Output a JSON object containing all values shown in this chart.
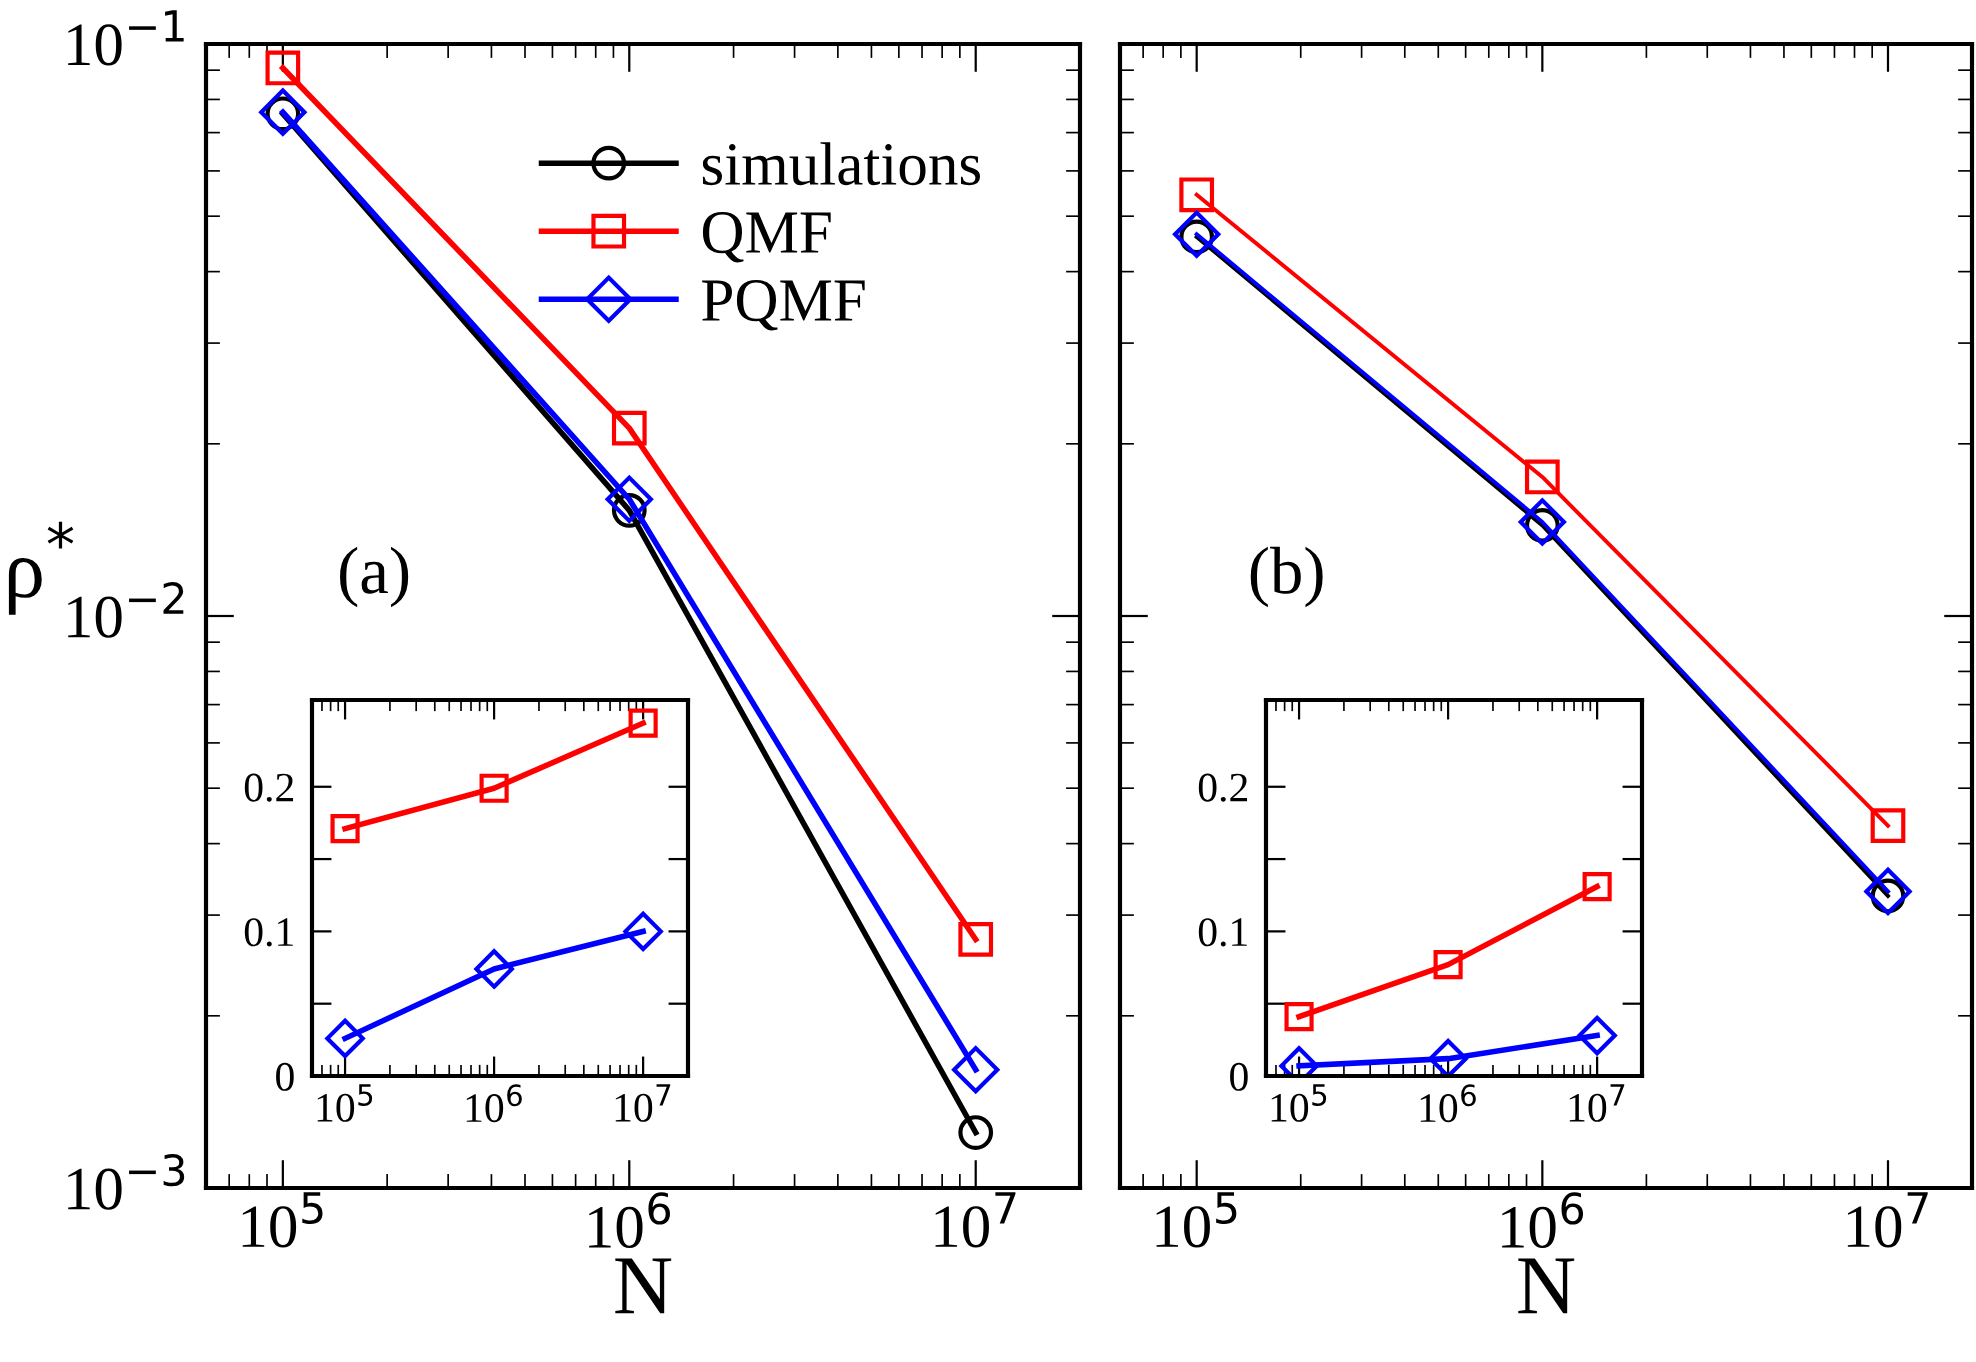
{
  "chart_data": [
    {
      "type": "line",
      "xlabel": "N",
      "ylabel": "ρ$^{*}$",
      "annotations": [
        "(a)"
      ],
      "log": "xy",
      "xlim": [
        60000,
        20000000
      ],
      "ylim": [
        0.001,
        0.1
      ],
      "xticks": [
        {
          "value": 100000,
          "label": "10$^{5}$"
        },
        {
          "value": 1000000,
          "label": "10$^{6}$"
        },
        {
          "value": 10000000,
          "label": "10$^{7}$"
        }
      ],
      "yticks": [
        {
          "value": 0.001,
          "label": "10$^{−3}$"
        },
        {
          "value": 0.01,
          "label": "10$^{−2}$"
        },
        {
          "value": 0.1,
          "label": "10$^{−1}$"
        }
      ],
      "x": [
        100000,
        1000000,
        10000000
      ],
      "legend": "top right",
      "line_style": "solid",
      "series": [
        {
          "name": "simulations",
          "color": "#000000",
          "marker": "circle",
          "values": [
            0.0755,
            0.0153,
            0.00125
          ]
        },
        {
          "name": "QMF",
          "color": "#ff0000",
          "marker": "square",
          "values": [
            0.0908,
            0.0213,
            0.00272
          ]
        },
        {
          "name": "PQMF",
          "color": "#0000ff",
          "marker": "diamond",
          "values": [
            0.076,
            0.016,
            0.00161
          ]
        }
      ]
    },
    {
      "type": "line",
      "log": "x",
      "xlim": [
        60000,
        20000000
      ],
      "ylim": [
        0,
        0.26
      ],
      "xticks": [
        {
          "value": 100000,
          "label": "10$^{5}$"
        },
        {
          "value": 1000000,
          "label": "10$^{6}$"
        },
        {
          "value": 10000000,
          "label": "10$^{7}$"
        }
      ],
      "yticks": [
        0,
        {
          "value": 0.05,
          "label": null
        },
        0.1,
        {
          "value": 0.15,
          "label": null
        },
        0.2
      ],
      "x": [
        100000,
        1000000,
        10000000
      ],
      "line_style": "solid",
      "series": [
        {
          "color": "#ff0000",
          "marker": "square",
          "values": [
            0.171,
            0.199,
            0.244
          ]
        },
        {
          "color": "#0000ff",
          "marker": "diamond",
          "values": [
            0.026,
            0.074,
            0.1
          ]
        }
      ]
    },
    {
      "type": "line",
      "xlabel": "N",
      "annotations": [
        "(b)"
      ],
      "log": "xy",
      "xlim": [
        60000,
        17500000
      ],
      "ylim": [
        0.001,
        0.1
      ],
      "tick_labels": "x",
      "xticks": [
        {
          "value": 100000,
          "label": "10$^{5}$"
        },
        {
          "value": 1000000,
          "label": "10$^{6}$"
        },
        {
          "value": 10000000,
          "label": "10$^{7}$"
        }
      ],
      "yticks": [
        {
          "value": 0.001,
          "label": null
        },
        {
          "value": 0.01,
          "label": null
        },
        {
          "value": 0.1,
          "label": null
        }
      ],
      "x": [
        100000,
        1000000,
        10000000
      ],
      "line_style": "solid",
      "series": [
        {
          "color": "#000000",
          "marker": "circle",
          "values": [
            0.046,
            0.0144,
            0.00324
          ]
        },
        {
          "color": "#ff0000",
          "marker": "square",
          "values": [
            0.0545,
            0.0175,
            0.0043
          ]
        },
        {
          "color": "#0000ff",
          "marker": "diamond",
          "values": [
            0.0465,
            0.0146,
            0.0033
          ]
        }
      ]
    },
    {
      "type": "line",
      "log": "x",
      "xlim": [
        60000,
        20000000
      ],
      "ylim": [
        0,
        0.26
      ],
      "xticks": [
        {
          "value": 100000,
          "label": "10$^{5}$"
        },
        {
          "value": 1000000,
          "label": "10$^{6}$"
        },
        {
          "value": 10000000,
          "label": "10$^{7}$"
        }
      ],
      "yticks": [
        0,
        {
          "value": 0.05,
          "label": null
        },
        0.1,
        {
          "value": 0.15,
          "label": null
        },
        0.2
      ],
      "x": [
        100000,
        1000000,
        10000000
      ],
      "line_style": "solid",
      "series": [
        {
          "color": "#ff0000",
          "marker": "square",
          "values": [
            0.041,
            0.077,
            0.131
          ]
        },
        {
          "color": "#0000ff",
          "marker": "diamond",
          "values": [
            0.007,
            0.012,
            0.028
          ]
        }
      ]
    }
  ]
}
